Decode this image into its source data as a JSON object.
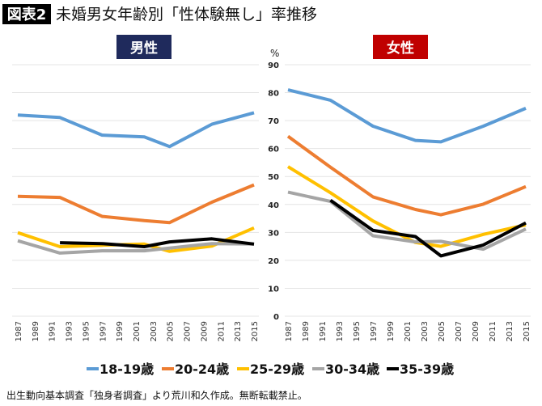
{
  "title": {
    "badge": "図表2",
    "text": "未婚男女年齢別「性体験無し」率推移"
  },
  "source_note": "出生動向基本調査「独身者調査」より荒川和久作成。無断転載禁止。",
  "colors": {
    "badge_bg": "#000000",
    "male_label_bg": "#1f2a5c",
    "female_label_bg": "#c00000"
  },
  "legend": [
    {
      "label": "18-19歳",
      "color": "#5b9bd5"
    },
    {
      "label": "20-24歳",
      "color": "#ed7d31"
    },
    {
      "label": "25-29歳",
      "color": "#ffc000"
    },
    {
      "label": "30-34歳",
      "color": "#a5a5a5"
    },
    {
      "label": "35-39歳",
      "color": "#000000"
    }
  ],
  "chart_data": [
    {
      "type": "line",
      "title": "男性",
      "ylabel": "",
      "ylim": [
        0,
        90
      ],
      "y_ticks_shown": false,
      "grid": true,
      "x_ticks": [
        "1987",
        "1989",
        "1991",
        "1993",
        "1995",
        "1997",
        "1999",
        "2001",
        "2003",
        "2005",
        "2007",
        "2009",
        "2011",
        "2013",
        "2015"
      ],
      "x": [
        1987,
        1992,
        1997,
        2002,
        2005,
        2010,
        2015
      ],
      "series": [
        {
          "name": "18-19歳",
          "values": [
            72.0,
            71.1,
            64.8,
            64.2,
            60.7,
            68.7,
            72.8
          ]
        },
        {
          "name": "20-24歳",
          "values": [
            42.9,
            42.5,
            35.7,
            34.2,
            33.5,
            40.8,
            47.0
          ]
        },
        {
          "name": "25-29歳",
          "values": [
            29.9,
            24.9,
            25.4,
            25.8,
            23.2,
            25.1,
            31.6
          ]
        },
        {
          "name": "30-34歳",
          "values": [
            27.0,
            22.6,
            23.4,
            23.4,
            24.4,
            26.0,
            25.8
          ]
        },
        {
          "name": "35-39歳",
          "values": [
            null,
            26.3,
            26.0,
            24.9,
            26.6,
            27.7,
            25.8
          ]
        }
      ]
    },
    {
      "type": "line",
      "title": "女性",
      "ylabel": "%",
      "ylim": [
        0,
        90
      ],
      "y_ticks": [
        0,
        10,
        20,
        30,
        40,
        50,
        60,
        70,
        80,
        90
      ],
      "grid": true,
      "x_ticks": [
        "1987",
        "1989",
        "1991",
        "1993",
        "1995",
        "1997",
        "1999",
        "2001",
        "2003",
        "2005",
        "2007",
        "2009",
        "2011",
        "2013",
        "2015"
      ],
      "x": [
        1987,
        1992,
        1997,
        2002,
        2005,
        2010,
        2015
      ],
      "series": [
        {
          "name": "18-19歳",
          "values": [
            81.0,
            77.3,
            68.0,
            62.9,
            62.4,
            68.0,
            74.4
          ]
        },
        {
          "name": "20-24歳",
          "values": [
            64.4,
            53.3,
            42.7,
            38.2,
            36.3,
            40.1,
            46.4
          ]
        },
        {
          "name": "25-29歳",
          "values": [
            53.5,
            44.2,
            34.1,
            26.4,
            25.0,
            29.3,
            32.7
          ]
        },
        {
          "name": "30-34歳",
          "values": [
            44.4,
            41.1,
            28.8,
            26.6,
            26.8,
            24.0,
            31.2
          ]
        },
        {
          "name": "35-39歳",
          "values": [
            null,
            41.5,
            30.7,
            28.5,
            21.6,
            25.5,
            33.4
          ]
        }
      ]
    }
  ]
}
